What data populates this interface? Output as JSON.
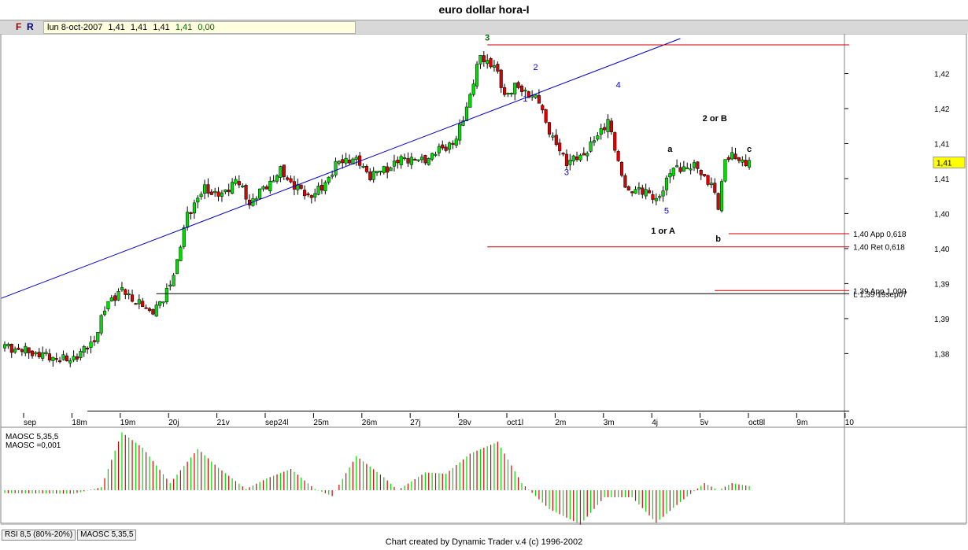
{
  "window": {
    "title": "euro dollar hora-I",
    "footer": "Chart created by Dynamic Trader v.4  (c) 1996-2002"
  },
  "toolbar": {
    "f_label": "F",
    "r_label": "R",
    "date": "lun 8-oct-2007",
    "open": "1,41",
    "high": "1,41",
    "low": "1,41",
    "close": "1,41",
    "change": "0,00"
  },
  "indicator": {
    "name": "MAOSC 5,35,5",
    "value_label": "MAOSC =0,001"
  },
  "tabs": [
    "RSI 8,5 (80%-20%)",
    "MAOSC 5,35,5"
  ],
  "colors": {
    "up": "#00dd00",
    "down": "#dd0000",
    "trendline": "#0000cc",
    "fib": "#cc0000",
    "wave_blue": "#0000cc",
    "wave_green": "#006400"
  },
  "chart_data": {
    "type": "candlestick",
    "ylim": [
      1.376,
      1.4295
    ],
    "y_ticks": [
      {
        "v": 1.4245,
        "label": "1,42"
      },
      {
        "v": 1.4195,
        "label": "1,42"
      },
      {
        "v": 1.4145,
        "label": "1,41"
      },
      {
        "v": 1.4095,
        "label": "1,41"
      },
      {
        "v": 1.4045,
        "label": "1,40"
      },
      {
        "v": 1.3995,
        "label": "1,40"
      },
      {
        "v": 1.3945,
        "label": "1,39"
      },
      {
        "v": 1.3895,
        "label": "1,39"
      },
      {
        "v": 1.3845,
        "label": "1,38"
      }
    ],
    "x_ticks": [
      "sep",
      "18m",
      "19m",
      "20j",
      "21v",
      "sep24l",
      "25m",
      "26m",
      "27j",
      "28v",
      "oct1l",
      "2m",
      "3m",
      "4j",
      "5v",
      "oct8l",
      "9m",
      "10"
    ],
    "current_price": {
      "v": 1.4118,
      "label": "1,41"
    },
    "bar_count": 236,
    "anchors": [
      {
        "i": 0,
        "p": 1.3855
      },
      {
        "i": 18,
        "p": 1.3835
      },
      {
        "i": 22,
        "p": 1.3845
      },
      {
        "i": 26,
        "p": 1.3865
      },
      {
        "i": 30,
        "p": 1.392
      },
      {
        "i": 34,
        "p": 1.3935
      },
      {
        "i": 38,
        "p": 1.392
      },
      {
        "i": 42,
        "p": 1.3905
      },
      {
        "i": 46,
        "p": 1.392
      },
      {
        "i": 50,
        "p": 1.3975
      },
      {
        "i": 53,
        "p": 1.4045
      },
      {
        "i": 58,
        "p": 1.408
      },
      {
        "i": 63,
        "p": 1.407
      },
      {
        "i": 67,
        "p": 1.4095
      },
      {
        "i": 71,
        "p": 1.406
      },
      {
        "i": 76,
        "p": 1.4085
      },
      {
        "i": 80,
        "p": 1.4105
      },
      {
        "i": 84,
        "p": 1.4085
      },
      {
        "i": 88,
        "p": 1.407
      },
      {
        "i": 92,
        "p": 1.408
      },
      {
        "i": 96,
        "p": 1.4115
      },
      {
        "i": 101,
        "p": 1.4125
      },
      {
        "i": 106,
        "p": 1.41
      },
      {
        "i": 111,
        "p": 1.411
      },
      {
        "i": 116,
        "p": 1.4125
      },
      {
        "i": 121,
        "p": 1.412
      },
      {
        "i": 126,
        "p": 1.4135
      },
      {
        "i": 131,
        "p": 1.415
      },
      {
        "i": 135,
        "p": 1.4215
      },
      {
        "i": 138,
        "p": 1.427
      },
      {
        "i": 142,
        "p": 1.4255
      },
      {
        "i": 145,
        "p": 1.4215
      },
      {
        "i": 148,
        "p": 1.4225
      },
      {
        "i": 151,
        "p": 1.422
      },
      {
        "i": 155,
        "p": 1.4205
      },
      {
        "i": 159,
        "p": 1.415
      },
      {
        "i": 163,
        "p": 1.412
      },
      {
        "i": 167,
        "p": 1.4125
      },
      {
        "i": 172,
        "p": 1.4155
      },
      {
        "i": 175,
        "p": 1.418
      },
      {
        "i": 178,
        "p": 1.4115
      },
      {
        "i": 181,
        "p": 1.4075
      },
      {
        "i": 186,
        "p": 1.408
      },
      {
        "i": 189,
        "p": 1.406
      },
      {
        "i": 193,
        "p": 1.4105
      },
      {
        "i": 197,
        "p": 1.4112
      },
      {
        "i": 201,
        "p": 1.411
      },
      {
        "i": 205,
        "p": 1.4085
      },
      {
        "i": 207,
        "p": 1.4055
      },
      {
        "i": 209,
        "p": 1.4125
      },
      {
        "i": 211,
        "p": 1.4125
      },
      {
        "i": 216,
        "p": 1.4118
      }
    ],
    "osc_anchors": [
      {
        "i": 0,
        "v": -0.05
      },
      {
        "i": 20,
        "v": -0.06
      },
      {
        "i": 28,
        "v": 0.05
      },
      {
        "i": 34,
        "v": 0.98
      },
      {
        "i": 40,
        "v": 0.72
      },
      {
        "i": 48,
        "v": 0.12
      },
      {
        "i": 56,
        "v": 0.7
      },
      {
        "i": 62,
        "v": 0.38
      },
      {
        "i": 70,
        "v": 0.02
      },
      {
        "i": 76,
        "v": 0.2
      },
      {
        "i": 83,
        "v": 0.36
      },
      {
        "i": 90,
        "v": 0.02
      },
      {
        "i": 95,
        "v": -0.1
      },
      {
        "i": 102,
        "v": 0.58
      },
      {
        "i": 110,
        "v": 0.22
      },
      {
        "i": 114,
        "v": 0.0
      },
      {
        "i": 122,
        "v": 0.3
      },
      {
        "i": 128,
        "v": 0.28
      },
      {
        "i": 135,
        "v": 0.62
      },
      {
        "i": 143,
        "v": 0.82
      },
      {
        "i": 150,
        "v": 0.12
      },
      {
        "i": 158,
        "v": -0.32
      },
      {
        "i": 167,
        "v": -0.58
      },
      {
        "i": 174,
        "v": -0.12
      },
      {
        "i": 182,
        "v": -0.12
      },
      {
        "i": 189,
        "v": -0.55
      },
      {
        "i": 196,
        "v": -0.2
      },
      {
        "i": 203,
        "v": 0.12
      },
      {
        "i": 207,
        "v": 0.0
      },
      {
        "i": 211,
        "v": 0.12
      },
      {
        "i": 216,
        "v": 0.07
      }
    ],
    "trendlines": [
      {
        "name": "trendline",
        "from": {
          "i": -1,
          "p": 1.3924
        },
        "to": {
          "i": 196,
          "p": 1.4295
        }
      }
    ],
    "hlines": [
      {
        "name": "high-line",
        "p": 1.4286,
        "from_i": 140,
        "to_i": 245,
        "color": "fib",
        "label": ""
      },
      {
        "name": "app-618-line",
        "p": 1.40163,
        "from_i": 210,
        "to_i": 245,
        "color": "fib",
        "label": "1,40 App 0,618"
      },
      {
        "name": "ret-618-line",
        "p": 1.39975,
        "from_i": 140,
        "to_i": 245,
        "color": "fib",
        "label": "1,40 Ret 0,618"
      },
      {
        "name": "app-1000-line",
        "p": 1.3935,
        "from_i": 206,
        "to_i": 245,
        "color": "fib",
        "label": "1,39 App 1,000"
      },
      {
        "name": "low-19sep-line",
        "p": 1.39305,
        "from_i": 44,
        "to_i": 245,
        "color": "#000000",
        "label": "L 1,39 19sep07"
      },
      {
        "name": "bottom-line",
        "p": 1.3763,
        "from_i": 24,
        "to_i": 245,
        "color": "#000000",
        "label": ""
      }
    ],
    "wave_labels": [
      {
        "text": "3",
        "i": 140,
        "p": 1.4292,
        "color": "wave_green",
        "bold": true
      },
      {
        "text": "2",
        "i": 154,
        "p": 1.425,
        "color": "wave_blue",
        "bold": false
      },
      {
        "text": "1",
        "i": 151,
        "p": 1.4205,
        "color": "wave_blue",
        "bold": false
      },
      {
        "text": "4",
        "i": 178,
        "p": 1.4225,
        "color": "wave_blue",
        "bold": false
      },
      {
        "text": "3",
        "i": 163,
        "p": 1.41,
        "color": "wave_blue",
        "bold": false
      },
      {
        "text": "5",
        "i": 192,
        "p": 1.4045,
        "color": "wave_blue",
        "bold": false
      },
      {
        "text": "a",
        "i": 193,
        "p": 1.4133,
        "color": "#000000",
        "bold": true
      },
      {
        "text": "1 or A",
        "i": 191,
        "p": 1.4016,
        "color": "#000000",
        "bold": true
      },
      {
        "text": "b",
        "i": 207,
        "p": 1.4005,
        "color": "#000000",
        "bold": true
      },
      {
        "text": "2 or B",
        "i": 206,
        "p": 1.4177,
        "color": "#000000",
        "bold": true
      },
      {
        "text": "c",
        "i": 216,
        "p": 1.4133,
        "color": "#000000",
        "bold": true
      }
    ]
  }
}
